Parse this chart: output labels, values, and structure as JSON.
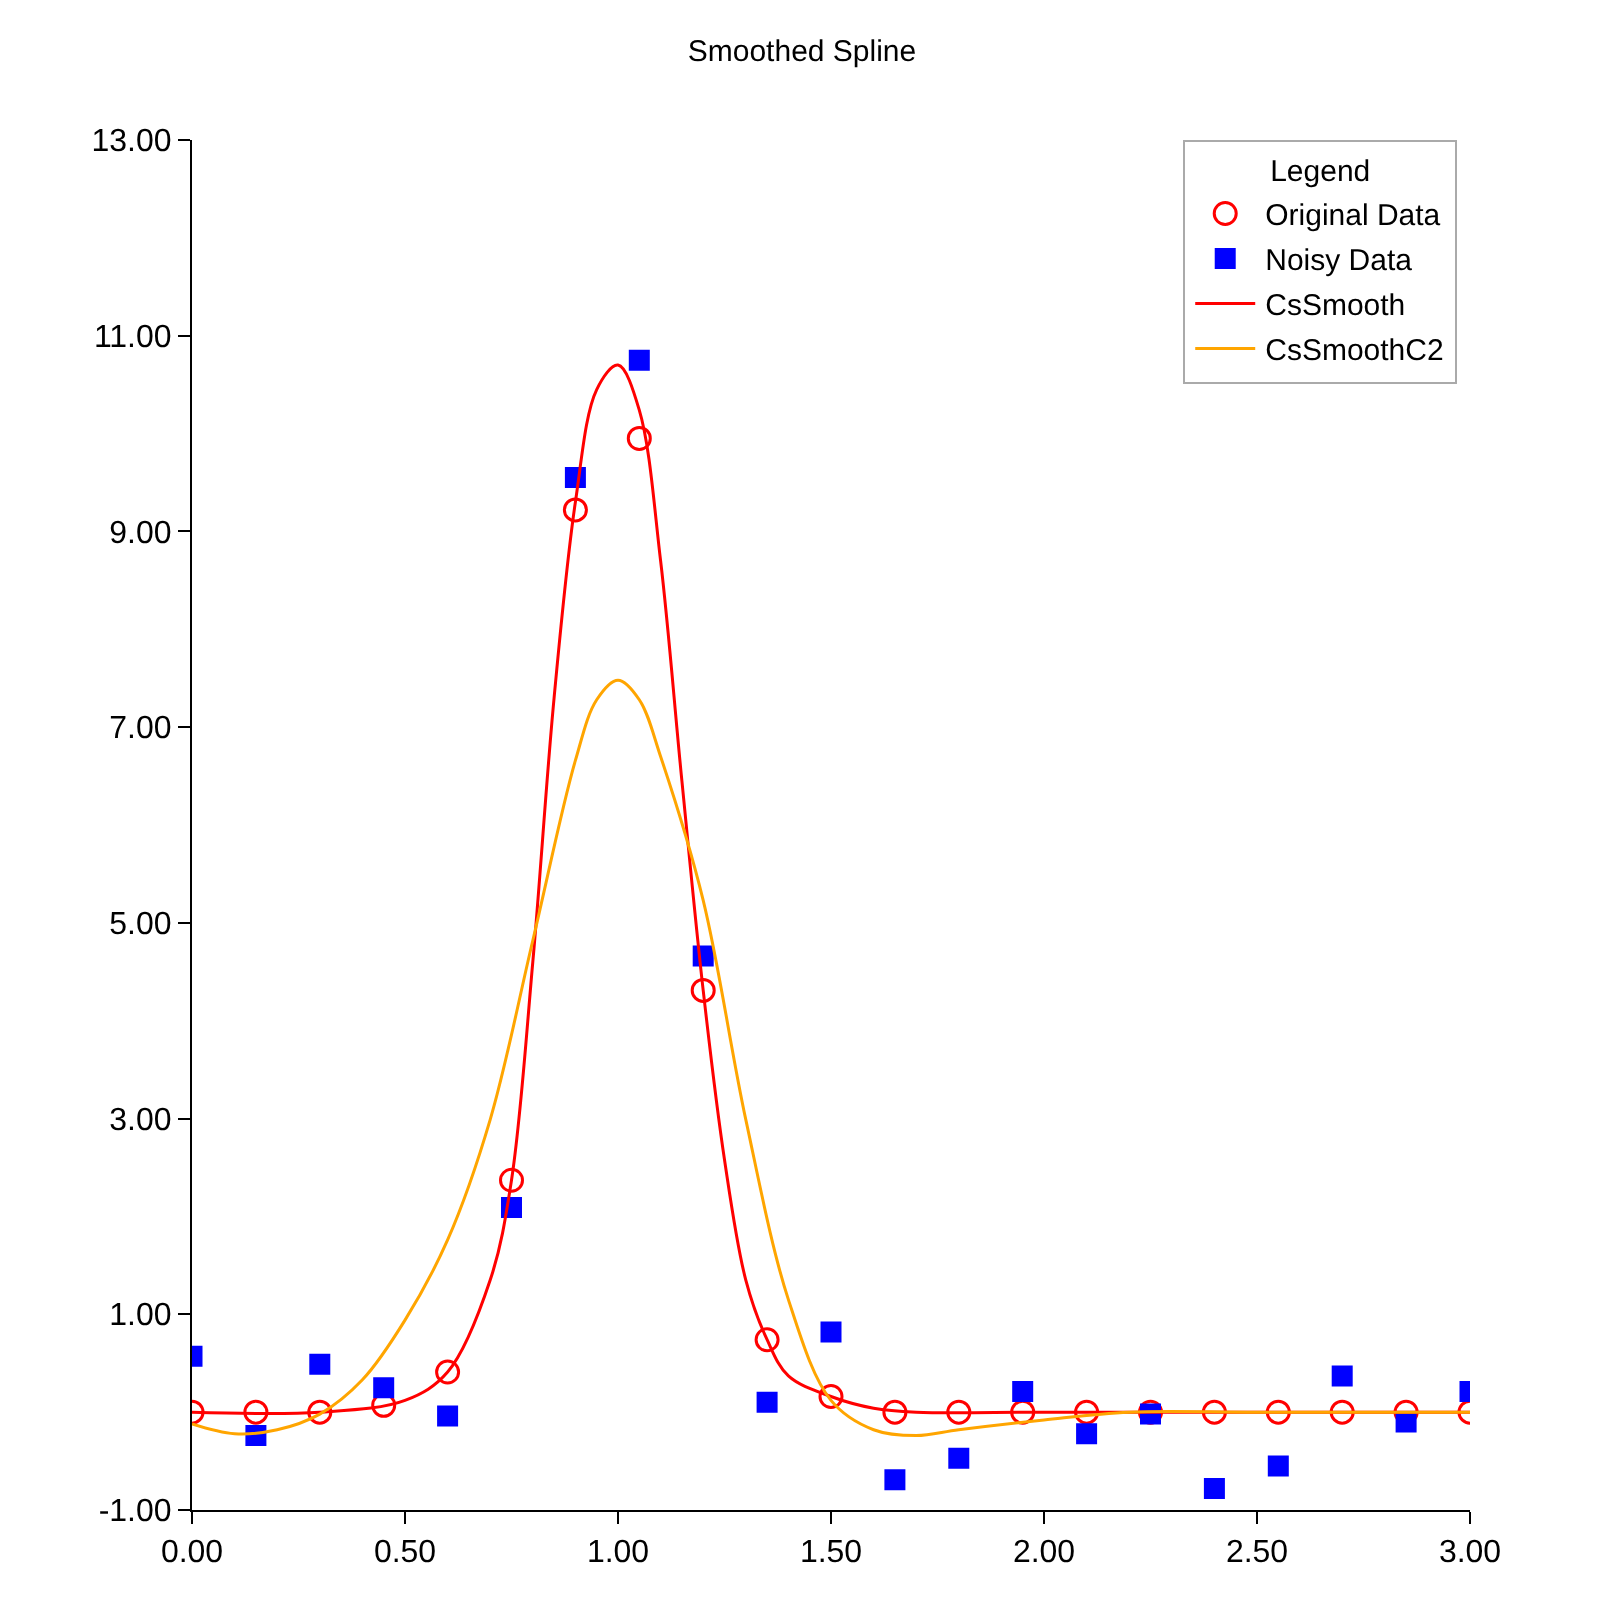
{
  "chart_data": {
    "type": "scatter",
    "title": "Smoothed Spline",
    "legend_title": "Legend",
    "legend": "top right",
    "xlim": [
      0,
      3
    ],
    "xticks": [
      {
        "value": 0,
        "label": "0.00"
      },
      {
        "value": 0.5,
        "label": "0.50"
      },
      {
        "value": 1,
        "label": "1.00"
      },
      {
        "value": 1.5,
        "label": "1.50"
      },
      {
        "value": 2,
        "label": "2.00"
      },
      {
        "value": 2.5,
        "label": "2.50"
      },
      {
        "value": 3,
        "label": "3.00"
      }
    ],
    "ylim": [
      -1,
      13
    ],
    "yticks": [
      {
        "value": -1,
        "label": "-1.00"
      },
      {
        "value": 1,
        "label": "1.00"
      },
      {
        "value": 3,
        "label": "3.00"
      },
      {
        "value": 5,
        "label": "5.00"
      },
      {
        "value": 7,
        "label": "7.00"
      },
      {
        "value": 9,
        "label": "9.00"
      },
      {
        "value": 11,
        "label": "11.00"
      },
      {
        "value": 13,
        "label": "13.00"
      }
    ],
    "series": [
      {
        "name": "Original Data",
        "marker": "circle",
        "color": "#ff0000",
        "x": [
          0,
          0.15,
          0.3,
          0.45,
          0.6,
          0.75,
          0.9,
          1.05,
          1.2,
          1.35,
          1.5,
          1.65,
          1.8,
          1.95,
          2.1,
          2.25,
          2.4,
          2.55,
          2.7,
          2.85,
          3.0
        ],
        "values": [
          0,
          0,
          0,
          0.07,
          0.41,
          2.37,
          9.22,
          9.95,
          4.31,
          0.74,
          0.16,
          0,
          0,
          0,
          0,
          0,
          0,
          0,
          0,
          0,
          0
        ]
      },
      {
        "name": "Noisy Data",
        "marker": "square",
        "color": "#0000ff",
        "x": [
          0,
          0.15,
          0.3,
          0.45,
          0.6,
          0.75,
          0.9,
          1.05,
          1.2,
          1.35,
          1.5,
          1.65,
          1.8,
          1.95,
          2.1,
          2.25,
          2.4,
          2.55,
          2.7,
          2.85,
          3.0
        ],
        "values": [
          0.57,
          -0.24,
          0.49,
          0.25,
          -0.04,
          2.09,
          9.55,
          10.75,
          4.66,
          0.1,
          0.82,
          -0.69,
          -0.47,
          0.21,
          -0.22,
          -0.02,
          -0.78,
          -0.55,
          0.37,
          -0.1,
          0.21
        ]
      },
      {
        "name": "CsSmooth",
        "type": "line",
        "marker": "none",
        "color": "#ff0000",
        "x": [
          0,
          0.3,
          0.5,
          0.6,
          0.7,
          0.75,
          0.8,
          0.85,
          0.9,
          0.95,
          1.0,
          1.05,
          1.1,
          1.15,
          1.2,
          1.25,
          1.3,
          1.35,
          1.4,
          1.5,
          1.6,
          1.7,
          2.0,
          2.5,
          3.0
        ],
        "values": [
          0,
          0,
          0.12,
          0.41,
          1.35,
          2.37,
          4.6,
          7.3,
          9.3,
          10.45,
          10.7,
          10.24,
          8.7,
          6.45,
          4.31,
          2.58,
          1.35,
          0.74,
          0.37,
          0.16,
          0.04,
          0,
          0,
          0,
          0
        ]
      },
      {
        "name": "CsSmoothC2",
        "type": "line",
        "marker": "none",
        "color": "#ffa500",
        "x": [
          0,
          0.1,
          0.2,
          0.3,
          0.4,
          0.5,
          0.6,
          0.7,
          0.8,
          0.9,
          0.95,
          1.0,
          1.05,
          1.1,
          1.2,
          1.3,
          1.4,
          1.5,
          1.6,
          1.7,
          1.8,
          2.0,
          2.2,
          2.5,
          3.0
        ],
        "values": [
          -0.12,
          -0.22,
          -0.18,
          -0.02,
          0.33,
          0.94,
          1.76,
          2.99,
          4.82,
          6.66,
          7.28,
          7.48,
          7.28,
          6.7,
          5.23,
          2.99,
          1.15,
          0.12,
          -0.18,
          -0.24,
          -0.18,
          -0.08,
          0,
          0,
          0
        ]
      }
    ]
  }
}
